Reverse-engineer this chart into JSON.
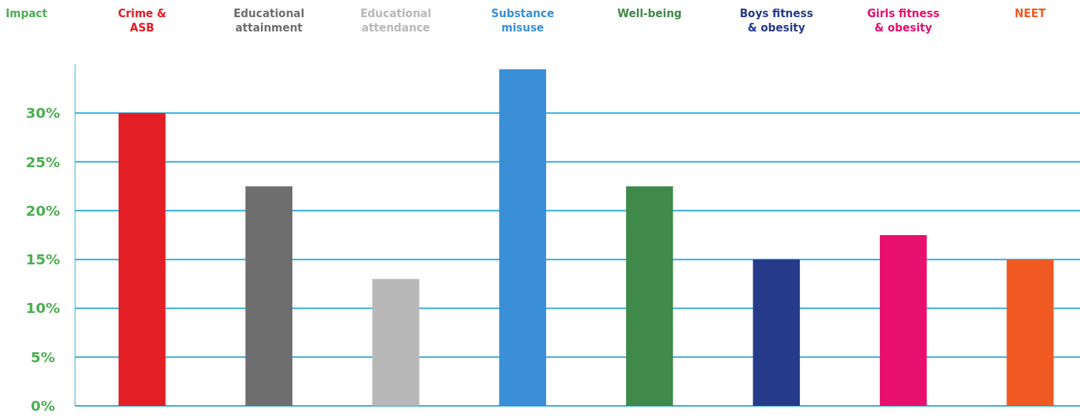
{
  "chart_data": {
    "type": "bar",
    "ylabel": "Impact",
    "categories": [
      "Crime &\nASB",
      "Educational\nattainment",
      "Educational\nattendance",
      "Substance\nmisuse",
      "Well-being",
      "Boys fitness\n& obesity",
      "Girls fitness\n& obesity",
      "NEET"
    ],
    "values": [
      30,
      22.5,
      13,
      34.5,
      22.5,
      15,
      17.5,
      15
    ],
    "colors": [
      "#e31e24",
      "#6e6e6e",
      "#b8b8b8",
      "#3a8fd6",
      "#3f8a4a",
      "#263a8a",
      "#e8106e",
      "#f05a22"
    ],
    "ylim": [
      0,
      35
    ],
    "yticks": [
      {
        "value": 0,
        "label": "0%"
      },
      {
        "value": 5,
        "label": "5%"
      },
      {
        "value": 10,
        "label": "10%"
      },
      {
        "value": 15,
        "label": "15%"
      },
      {
        "value": 20,
        "label": "20%"
      },
      {
        "value": 25,
        "label": "25%"
      },
      {
        "value": 30,
        "label": "30%"
      }
    ],
    "grid": "y"
  }
}
